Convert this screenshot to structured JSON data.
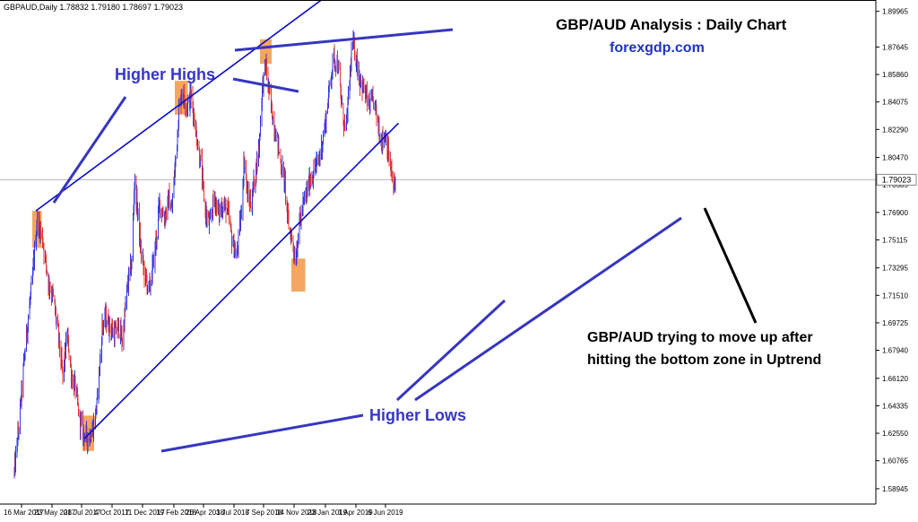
{
  "chart_data": {
    "type": "candlestick",
    "symbol_header": "GBPAUD,Daily  1.78832 1.79180 1.78697 1.79023",
    "title": "GBP/AUD Analysis : Daily Chart",
    "subtitle": "forexgdp.com",
    "current_price": 1.79023,
    "current_price_label": "1.79023",
    "ylim": [
      1.5795,
      1.907
    ],
    "y_ticks": [
      1.89965,
      1.87645,
      1.8586,
      1.84075,
      1.8229,
      1.8047,
      1.78685,
      1.769,
      1.75115,
      1.73295,
      1.7151,
      1.69725,
      1.6794,
      1.6612,
      1.64335,
      1.6255,
      1.60765,
      1.58945
    ],
    "y_tick_labels": [
      "1.89965",
      "1.87645",
      "1.85860",
      "1.84075",
      "1.82290",
      "1.80470",
      "1.78685",
      "1.76900",
      "1.75115",
      "1.73295",
      "1.71510",
      "1.69725",
      "1.67940",
      "1.66120",
      "1.64335",
      "1.62550",
      "1.60765",
      "1.58945"
    ],
    "x_dates": [
      "2017-03-16",
      "2017-05-23",
      "2017-07-28",
      "2017-10-04",
      "2017-12-11",
      "2018-02-19",
      "2018-04-26",
      "2018-07-03",
      "2018-09-07",
      "2018-11-14",
      "2019-01-23",
      "2019-04-01",
      "2019-06-06"
    ],
    "x_tick_labels": [
      "16 Mar 2017",
      "23 May 2017",
      "28 Jul 2017",
      "4 Oct 2017",
      "11 Dec 2017",
      "19 Feb 2018",
      "26 Apr 2018",
      "3 Jul 2018",
      "7 Sep 2018",
      "14 Nov 2018",
      "23 Jan 2019",
      "1 Apr 2019",
      "6 Jun 2019"
    ],
    "price_path": [
      [
        "2017-02-28",
        1.6
      ],
      [
        "2017-03-10",
        1.63
      ],
      [
        "2017-03-24",
        1.68
      ],
      [
        "2017-04-10",
        1.728
      ],
      [
        "2017-04-20",
        1.765
      ],
      [
        "2017-05-02",
        1.752
      ],
      [
        "2017-05-16",
        1.722
      ],
      [
        "2017-05-25",
        1.715
      ],
      [
        "2017-06-06",
        1.69
      ],
      [
        "2017-06-16",
        1.662
      ],
      [
        "2017-06-26",
        1.69
      ],
      [
        "2017-07-06",
        1.662
      ],
      [
        "2017-07-14",
        1.655
      ],
      [
        "2017-07-24",
        1.634
      ],
      [
        "2017-08-02",
        1.625
      ],
      [
        "2017-08-11",
        1.622
      ],
      [
        "2017-08-22",
        1.628
      ],
      [
        "2017-09-01",
        1.645
      ],
      [
        "2017-09-12",
        1.695
      ],
      [
        "2017-09-20",
        1.7
      ],
      [
        "2017-09-29",
        1.695
      ],
      [
        "2017-10-09",
        1.69
      ],
      [
        "2017-10-19",
        1.695
      ],
      [
        "2017-10-27",
        1.685
      ],
      [
        "2017-11-06",
        1.718
      ],
      [
        "2017-11-17",
        1.737
      ],
      [
        "2017-11-23",
        1.79
      ],
      [
        "2017-11-30",
        1.77
      ],
      [
        "2017-12-07",
        1.745
      ],
      [
        "2017-12-15",
        1.73
      ],
      [
        "2017-12-26",
        1.718
      ],
      [
        "2018-01-08",
        1.745
      ],
      [
        "2018-01-18",
        1.775
      ],
      [
        "2018-01-29",
        1.765
      ],
      [
        "2018-02-08",
        1.778
      ],
      [
        "2018-02-14",
        1.77
      ],
      [
        "2018-02-22",
        1.8
      ],
      [
        "2018-03-02",
        1.835
      ],
      [
        "2018-03-10",
        1.848
      ],
      [
        "2018-03-20",
        1.838
      ],
      [
        "2018-03-30",
        1.845
      ],
      [
        "2018-04-10",
        1.82
      ],
      [
        "2018-04-20",
        1.8
      ],
      [
        "2018-04-30",
        1.77
      ],
      [
        "2018-05-10",
        1.76
      ],
      [
        "2018-05-20",
        1.78
      ],
      [
        "2018-05-30",
        1.768
      ],
      [
        "2018-06-09",
        1.775
      ],
      [
        "2018-06-19",
        1.77
      ],
      [
        "2018-06-29",
        1.75
      ],
      [
        "2018-07-09",
        1.74
      ],
      [
        "2018-07-19",
        1.768
      ],
      [
        "2018-07-26",
        1.805
      ],
      [
        "2018-08-02",
        1.78
      ],
      [
        "2018-08-10",
        1.775
      ],
      [
        "2018-08-20",
        1.795
      ],
      [
        "2018-08-28",
        1.812
      ],
      [
        "2018-09-04",
        1.85
      ],
      [
        "2018-09-12",
        1.865
      ],
      [
        "2018-09-20",
        1.845
      ],
      [
        "2018-09-28",
        1.83
      ],
      [
        "2018-10-08",
        1.815
      ],
      [
        "2018-10-16",
        1.8
      ],
      [
        "2018-10-24",
        1.79
      ],
      [
        "2018-11-01",
        1.762
      ],
      [
        "2018-11-09",
        1.752
      ],
      [
        "2018-11-17",
        1.738
      ],
      [
        "2018-11-25",
        1.76
      ],
      [
        "2018-12-03",
        1.772
      ],
      [
        "2018-12-11",
        1.78
      ],
      [
        "2018-12-19",
        1.79
      ],
      [
        "2018-12-31",
        1.797
      ],
      [
        "2019-01-10",
        1.805
      ],
      [
        "2019-01-22",
        1.825
      ],
      [
        "2019-02-01",
        1.85
      ],
      [
        "2019-02-10",
        1.87
      ],
      [
        "2019-02-20",
        1.865
      ],
      [
        "2019-03-01",
        1.835
      ],
      [
        "2019-03-10",
        1.82
      ],
      [
        "2019-03-17",
        1.85
      ],
      [
        "2019-03-24",
        1.88
      ],
      [
        "2019-04-01",
        1.87
      ],
      [
        "2019-04-10",
        1.855
      ],
      [
        "2019-04-20",
        1.848
      ],
      [
        "2019-04-30",
        1.838
      ],
      [
        "2019-05-10",
        1.842
      ],
      [
        "2019-05-20",
        1.828
      ],
      [
        "2019-05-28",
        1.815
      ],
      [
        "2019-06-06",
        1.82
      ],
      [
        "2019-06-16",
        1.8
      ],
      [
        "2019-06-24",
        1.785
      ],
      [
        "2019-07-01",
        1.79
      ]
    ],
    "annotations": {
      "higher_highs_label": "Higher Highs",
      "higher_lows_label": "Higher Lows",
      "note_line_1": "GBP/AUD trying to move up after",
      "note_line_2": "hitting the bottom zone in Uptrend"
    },
    "trendlines": [
      {
        "name": "upper channel",
        "from": [
          "2017-04-17",
          1.77
        ],
        "to": [
          "2019-02-20",
          1.915
        ]
      },
      {
        "name": "lower trendline",
        "from": [
          "2017-08-03",
          1.622
        ],
        "to": [
          "2019-07-05",
          1.827
        ]
      }
    ],
    "zones": [
      {
        "from": [
          "2017-04-09",
          1.746
        ],
        "to": [
          "2017-04-30",
          1.77
        ]
      },
      {
        "from": [
          "2018-02-21",
          1.8325
        ],
        "to": [
          "2018-03-22",
          1.8545
        ]
      },
      {
        "from": [
          "2018-08-30",
          1.8655
        ],
        "to": [
          "2018-09-25",
          1.8815
        ]
      },
      {
        "from": [
          "2018-11-08",
          1.7175
        ],
        "to": [
          "2018-12-09",
          1.739
        ]
      },
      {
        "from": [
          "2017-07-30",
          1.614
        ],
        "to": [
          "2017-08-25",
          1.637
        ]
      }
    ],
    "colors": {
      "up_candle": "#3434e0",
      "down_candle": "#e03434",
      "trendline": "#0a0acc",
      "label_line": "#3636c0",
      "label_text": "#3636c8",
      "zone_fill": "#f29644",
      "title": "#000000",
      "subtitle": "#1f33c4",
      "axis": "#000000",
      "price_line": "#b8b8b8",
      "callout_line": "#000000"
    }
  }
}
